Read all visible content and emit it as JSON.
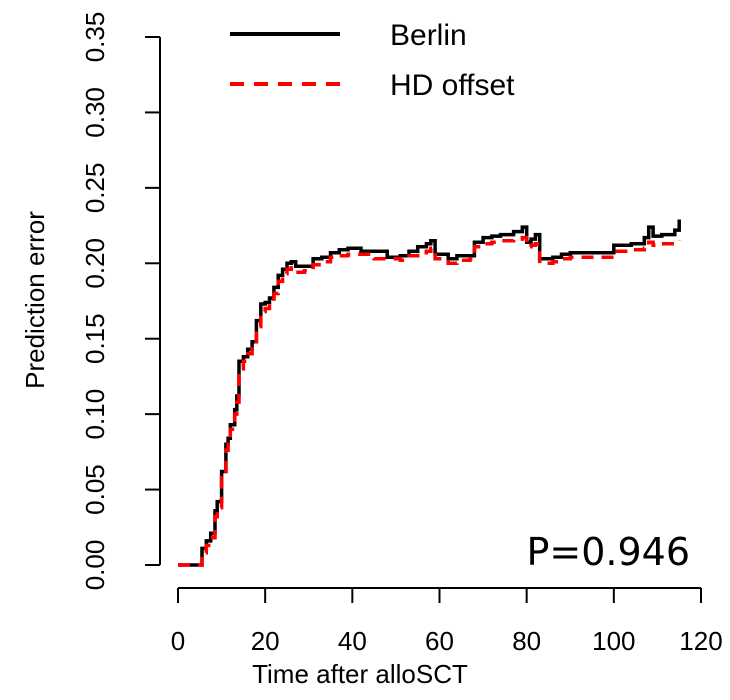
{
  "chart_data": {
    "type": "line",
    "xlabel": "Time after alloSCT",
    "ylabel": "Prediction error",
    "xlim": [
      0,
      120
    ],
    "ylim": [
      0,
      0.35
    ],
    "x_ticks": [
      0,
      20,
      40,
      60,
      80,
      100,
      120
    ],
    "x_tick_labels": [
      "0",
      "20",
      "40",
      "60",
      "80",
      "100",
      "120"
    ],
    "y_ticks": [
      0,
      0.05,
      0.1,
      0.15,
      0.2,
      0.25,
      0.3,
      0.35
    ],
    "y_tick_labels": [
      "0.00",
      "0.05",
      "0.10",
      "0.15",
      "0.20",
      "0.25",
      "0.30",
      "0.35"
    ],
    "grid": false,
    "legend_position": "top-left",
    "annotation": "P=0.946",
    "series": [
      {
        "name": "Berlin",
        "color": "#000000",
        "dash": "solid",
        "x": [
          0,
          5.5,
          6.5,
          7.5,
          8.5,
          9,
          10,
          11,
          11.5,
          12,
          13,
          13.5,
          14,
          15,
          16,
          17,
          18,
          19,
          20,
          21,
          22,
          23,
          24,
          25,
          26,
          27,
          29,
          31,
          33,
          35,
          37,
          39,
          42,
          45,
          48,
          51,
          53,
          55,
          57,
          58,
          59,
          62,
          64,
          67,
          68,
          70,
          72,
          74,
          77,
          79,
          80,
          81,
          82,
          83,
          86,
          88,
          90,
          95,
          100,
          104,
          107,
          108,
          109,
          111,
          114,
          115
        ],
        "y": [
          0,
          0.011,
          0.016,
          0.021,
          0.036,
          0.042,
          0.062,
          0.08,
          0.084,
          0.093,
          0.103,
          0.112,
          0.135,
          0.138,
          0.143,
          0.148,
          0.162,
          0.173,
          0.174,
          0.177,
          0.184,
          0.192,
          0.196,
          0.2,
          0.201,
          0.198,
          0.198,
          0.203,
          0.204,
          0.207,
          0.209,
          0.21,
          0.208,
          0.208,
          0.204,
          0.205,
          0.208,
          0.211,
          0.213,
          0.215,
          0.206,
          0.203,
          0.205,
          0.205,
          0.214,
          0.217,
          0.218,
          0.219,
          0.221,
          0.224,
          0.214,
          0.216,
          0.219,
          0.203,
          0.204,
          0.206,
          0.207,
          0.207,
          0.212,
          0.213,
          0.217,
          0.224,
          0.218,
          0.219,
          0.222,
          0.229
        ]
      },
      {
        "name": "HD offset",
        "color": "#ff0000",
        "dash": "dashed",
        "x": [
          0,
          5.5,
          6.5,
          7.5,
          8.5,
          9,
          10,
          11,
          11.5,
          12,
          13,
          13.5,
          14,
          15,
          16,
          17,
          18,
          19,
          20,
          21,
          22,
          23,
          24,
          25,
          26,
          27,
          29,
          31,
          33,
          35,
          37,
          39,
          42,
          45,
          48,
          51,
          53,
          55,
          57,
          58,
          59,
          62,
          64,
          67,
          68,
          70,
          72,
          74,
          77,
          79,
          80,
          81,
          82,
          83,
          86,
          88,
          90,
          95,
          100,
          104,
          107,
          108,
          109,
          111,
          114,
          115
        ],
        "y": [
          0,
          0.008,
          0.013,
          0.018,
          0.032,
          0.038,
          0.058,
          0.076,
          0.08,
          0.09,
          0.1,
          0.108,
          0.13,
          0.135,
          0.14,
          0.145,
          0.158,
          0.168,
          0.17,
          0.173,
          0.18,
          0.188,
          0.193,
          0.196,
          0.197,
          0.194,
          0.195,
          0.199,
          0.201,
          0.204,
          0.205,
          0.206,
          0.206,
          0.203,
          0.203,
          0.202,
          0.205,
          0.207,
          0.208,
          0.21,
          0.203,
          0.2,
          0.202,
          0.203,
          0.211,
          0.213,
          0.214,
          0.215,
          0.216,
          0.217,
          0.211,
          0.212,
          0.213,
          0.2,
          0.201,
          0.203,
          0.204,
          0.204,
          0.208,
          0.209,
          0.21,
          0.214,
          0.212,
          0.213,
          0.214,
          0.215
        ]
      }
    ]
  }
}
